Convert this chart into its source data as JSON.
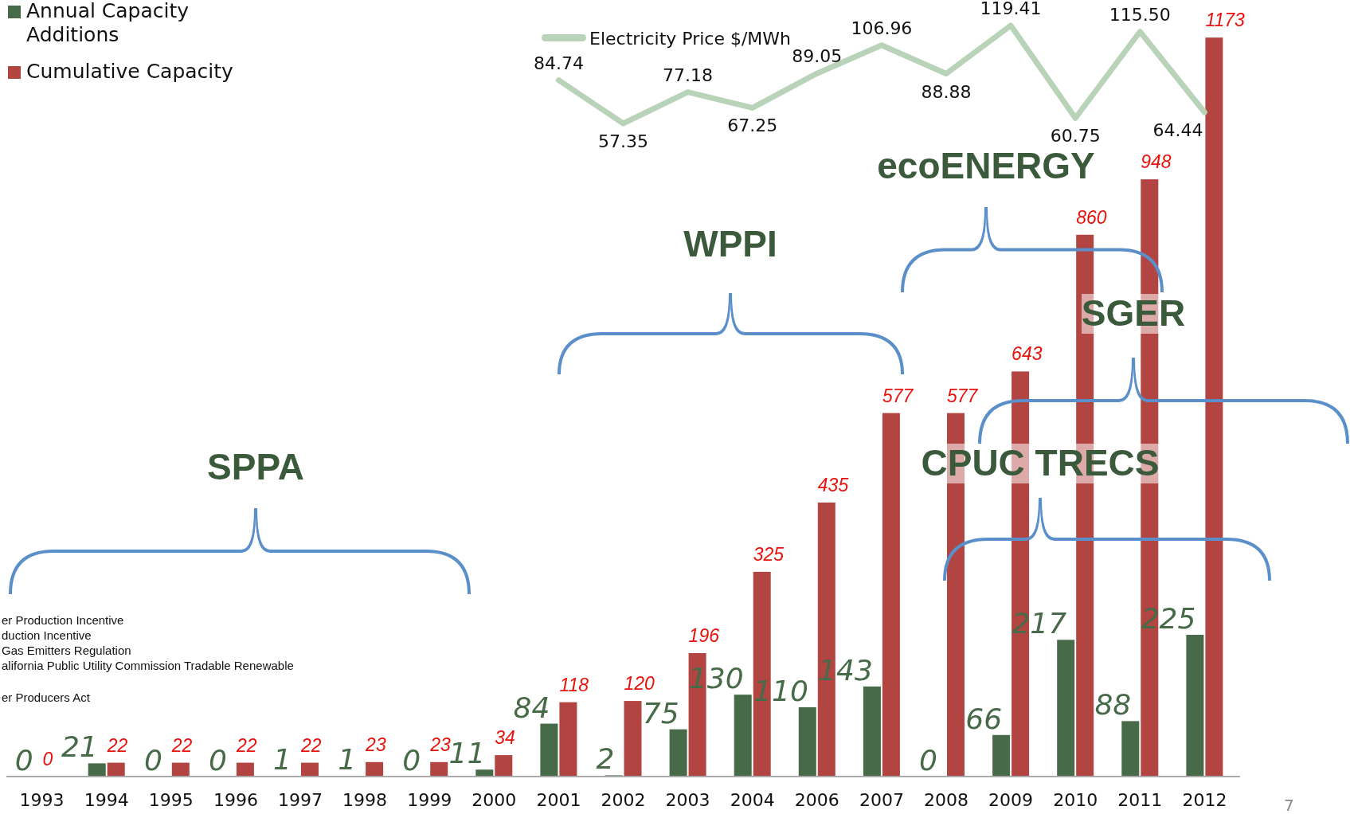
{
  "chart_data": {
    "type": "bar",
    "categories": [
      "1993",
      "1994",
      "1995",
      "1996",
      "1997",
      "1998",
      "1999",
      "2000",
      "2001",
      "2002",
      "2003",
      "2004",
      "2006",
      "2007",
      "2008",
      "2009",
      "2010",
      "2011",
      "2012"
    ],
    "series": [
      {
        "name": "Annual Capacity Additions",
        "color": "#476a48",
        "values": [
          0,
          21,
          0,
          0,
          1,
          1,
          0,
          11,
          84,
          2,
          75,
          130,
          110,
          143,
          0,
          66,
          217,
          88,
          225
        ]
      },
      {
        "name": "Cumulative Capacity",
        "color": "#b24441",
        "values": [
          0,
          22,
          22,
          22,
          22,
          23,
          23,
          34,
          118,
          120,
          196,
          325,
          435,
          577,
          577,
          643,
          860,
          948,
          1173
        ]
      },
      {
        "name": "Electricity Price $/MWh",
        "type": "line",
        "axis": "y2",
        "color": "#b9d3b9",
        "marker": "none",
        "values": [
          null,
          null,
          null,
          null,
          null,
          null,
          null,
          null,
          84.74,
          57.35,
          77.18,
          67.25,
          89.05,
          106.96,
          88.88,
          119.41,
          60.75,
          115.5,
          64.44
        ],
        "value_labels": [
          null,
          null,
          null,
          null,
          null,
          null,
          null,
          null,
          "84.74",
          "57.35",
          "77.18",
          "67.25",
          "89.05",
          "106.96",
          "88.88",
          "119.41",
          "60.75",
          "115.50",
          "64.44"
        ]
      }
    ],
    "ylim": [
      0,
      1220
    ],
    "tick_labels": "x",
    "data_labels": true,
    "legend": "top left",
    "annotations": [
      "SPPA",
      "WPPI",
      "ecoENERGY",
      "SGER",
      "CPUC TRECS",
      "er Production Incentive",
      "duction Incentive",
      "Gas Emitters Regulation",
      "alifornia Public Utility Commission Tradable Renewable",
      "er Producers Act",
      "7"
    ]
  }
}
